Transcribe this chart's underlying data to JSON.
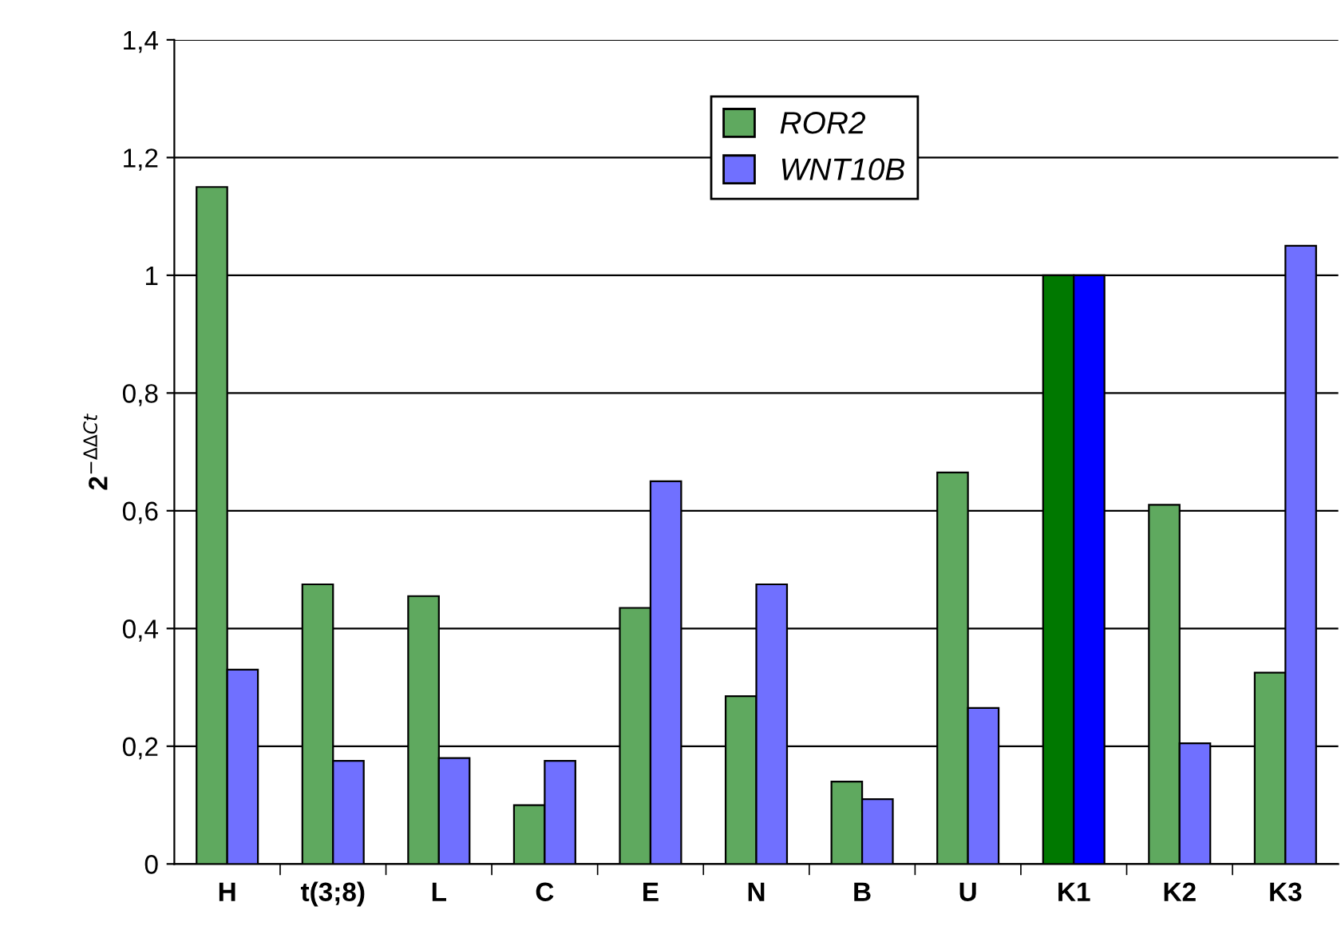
{
  "chart_data": {
    "type": "bar",
    "ylabel": "2$^{−ΔΔCt}$",
    "categories": [
      "H",
      "t(3;8)",
      "L",
      "C",
      "E",
      "N",
      "B",
      "U",
      "K1",
      "K2",
      "K3"
    ],
    "series": [
      {
        "name": "ROR2",
        "color": "#5fa95f",
        "colors": [
          "#5fa95f",
          "#5fa95f",
          "#5fa95f",
          "#5fa95f",
          "#5fa95f",
          "#5fa95f",
          "#5fa95f",
          "#5fa95f",
          "#007800",
          "#5fa95f",
          "#5fa95f"
        ],
        "values": [
          1.15,
          0.475,
          0.455,
          0.1,
          0.435,
          0.285,
          0.14,
          0.665,
          1.0,
          0.61,
          0.325
        ]
      },
      {
        "name": "WNT10B",
        "color": "#7070ff",
        "colors": [
          "#7070ff",
          "#7070ff",
          "#7070ff",
          "#7070ff",
          "#7070ff",
          "#7070ff",
          "#7070ff",
          "#7070ff",
          "#0000ff",
          "#7070ff",
          "#7070ff"
        ],
        "values": [
          0.33,
          0.175,
          0.18,
          0.175,
          0.65,
          0.475,
          0.11,
          0.265,
          1.0,
          0.205,
          1.05
        ]
      }
    ],
    "ylim": [
      0,
      1.4
    ],
    "yticks": [
      0,
      {
        "value": 0.2,
        "label": "0,2"
      },
      {
        "value": 0.4,
        "label": "0,4"
      },
      {
        "value": 0.6,
        "label": "0,6"
      },
      {
        "value": 0.8,
        "label": "0,8"
      },
      1,
      {
        "value": 1.2,
        "label": "1,2"
      },
      {
        "value": 1.4,
        "label": "1,4"
      }
    ],
    "grid": "y",
    "legend": "top center"
  }
}
